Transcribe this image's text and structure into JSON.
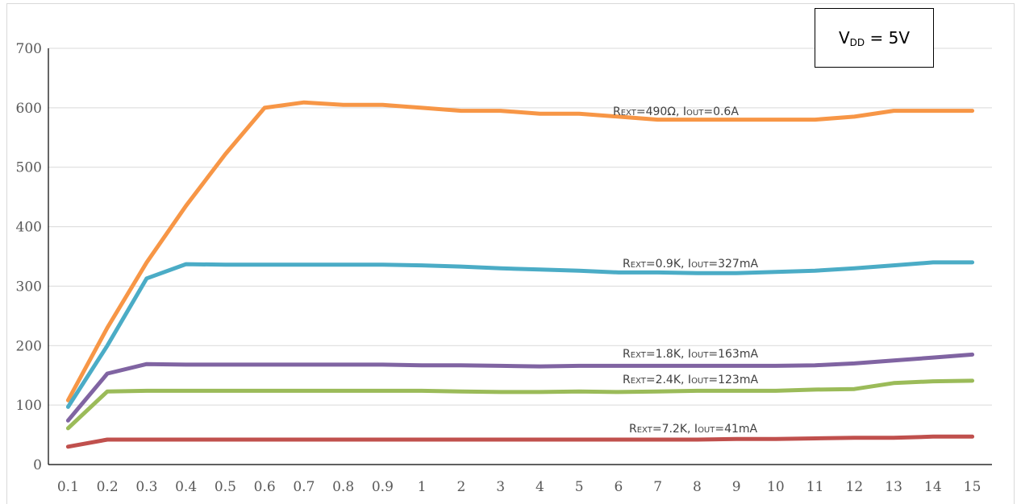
{
  "chart_data": {
    "type": "line",
    "title": "",
    "xlabel": "",
    "ylabel": "",
    "categories": [
      "0.1",
      "0.2",
      "0.3",
      "0.4",
      "0.5",
      "0.6",
      "0.7",
      "0.8",
      "0.9",
      "1",
      "2",
      "3",
      "4",
      "5",
      "6",
      "7",
      "8",
      "9",
      "10",
      "11",
      "12",
      "13",
      "14",
      "15"
    ],
    "ylim": [
      0,
      700
    ],
    "yticks": [
      0,
      100,
      200,
      300,
      400,
      500,
      600,
      700
    ],
    "grid": true,
    "legend": "inline labels",
    "series": [
      {
        "label": {
          "main": "R",
          "sub1": "EXT",
          "mid": "=490Ω, I",
          "sub2": "OUT",
          "end": "=0.6A"
        },
        "color": "#f79646",
        "values": [
          108,
          230,
          340,
          435,
          522,
          600,
          609,
          605,
          605,
          600,
          595,
          595,
          590,
          590,
          585,
          580,
          580,
          580,
          580,
          580,
          585,
          595,
          595,
          595
        ]
      },
      {
        "label": {
          "main": "R",
          "sub1": "EXT",
          "mid": "=0.9K, I",
          "sub2": "OUT",
          "end": "=327mA"
        },
        "color": "#4bacc6",
        "values": [
          97,
          200,
          313,
          337,
          336,
          336,
          336,
          336,
          336,
          335,
          333,
          330,
          328,
          326,
          323,
          323,
          322,
          322,
          324,
          326,
          330,
          335,
          340,
          340
        ]
      },
      {
        "label": {
          "main": "R",
          "sub1": "EXT",
          "mid": "=1.8K, I",
          "sub2": "OUT",
          "end": "=163mA"
        },
        "color": "#8064a2",
        "values": [
          74,
          153,
          169,
          168,
          168,
          168,
          168,
          168,
          168,
          167,
          167,
          166,
          165,
          166,
          166,
          166,
          166,
          166,
          166,
          167,
          170,
          175,
          180,
          185
        ]
      },
      {
        "label": {
          "main": "R",
          "sub1": "EXT",
          "mid": "=2.4K, I",
          "sub2": "OUT",
          "end": "=123mA"
        },
        "color": "#9bbb59",
        "values": [
          61,
          123,
          124,
          124,
          124,
          124,
          124,
          124,
          124,
          124,
          123,
          122,
          122,
          123,
          122,
          123,
          124,
          124,
          124,
          126,
          127,
          137,
          140,
          141
        ]
      },
      {
        "label": {
          "main": "R",
          "sub1": "EXT",
          "mid": "=7.2K, I",
          "sub2": "OUT",
          "end": "=41mA"
        },
        "color": "#c0504d",
        "values": [
          30,
          42,
          42,
          42,
          42,
          42,
          42,
          42,
          42,
          42,
          42,
          42,
          42,
          42,
          42,
          42,
          42,
          43,
          43,
          44,
          45,
          45,
          47,
          47
        ]
      }
    ],
    "annotation": {
      "main": "V",
      "sub": "DD",
      "rest": " = 5V"
    }
  }
}
